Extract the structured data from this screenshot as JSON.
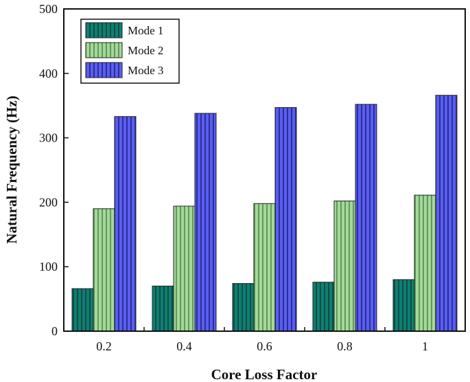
{
  "chart_data": {
    "type": "bar",
    "title": "",
    "xlabel": "Core Loss Factor",
    "ylabel": "Natural Frequency (Hz)",
    "categories": [
      "0.2",
      "0.4",
      "0.6",
      "0.8",
      "1"
    ],
    "ylim": [
      0,
      500
    ],
    "yticks": [
      0,
      100,
      200,
      300,
      400,
      500
    ],
    "grid": false,
    "legend_position": "top-left",
    "series": [
      {
        "name": "Mode 1",
        "color": "#0f7f72",
        "values": [
          66,
          70,
          74,
          76,
          80
        ]
      },
      {
        "name": "Mode 2",
        "color": "#94c98a",
        "values": [
          190,
          194,
          198,
          202,
          211
        ]
      },
      {
        "name": "Mode 3",
        "color": "#4b4fdc",
        "values": [
          333,
          338,
          347,
          352,
          366
        ]
      }
    ]
  }
}
